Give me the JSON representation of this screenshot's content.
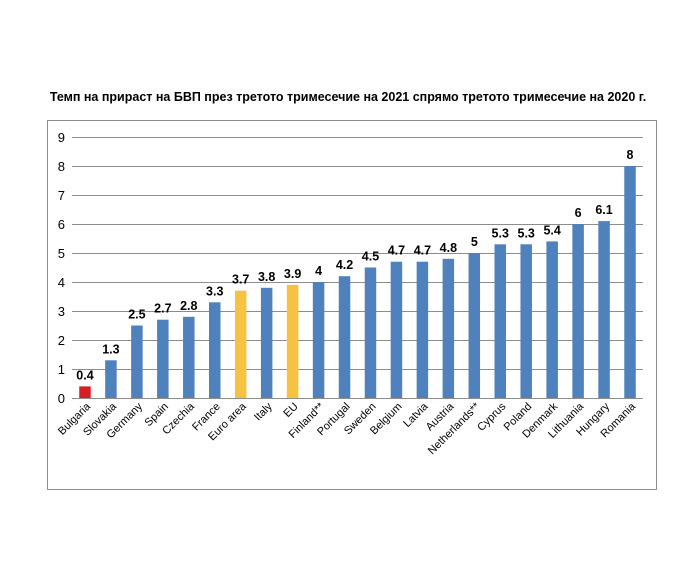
{
  "colors": {
    "default_bar": "#4f81bd",
    "highlight_bar": "#f5c242",
    "bulgaria_bar": "#d41f26",
    "gridline": "#8c8c8c"
  },
  "chart_data": {
    "type": "bar",
    "title": "Темп на прираст на БВП през третото тримесечие на 2021 спрямо третото тримесечие на 2020 г.",
    "xlabel": "",
    "ylabel": "",
    "ylim": [
      0,
      9
    ],
    "yticks": [
      0,
      1,
      2,
      3,
      4,
      5,
      6,
      7,
      8,
      9
    ],
    "grid": true,
    "legend": "none",
    "categories": [
      "Bulgaria",
      "Slovakia",
      "Germany",
      "Spain",
      "Czechia",
      "France",
      "Euro area",
      "Italy",
      "EU",
      "Finland**",
      "Portugal",
      "Sweden",
      "Belgium",
      "Latvia",
      "Austria",
      "Netherlands**",
      "Cyprus",
      "Poland",
      "Denmark",
      "Lithuania",
      "Hungary",
      "Romania"
    ],
    "values": [
      0.4,
      1.3,
      2.5,
      2.7,
      2.8,
      3.3,
      3.7,
      3.8,
      3.9,
      4,
      4.2,
      4.5,
      4.7,
      4.7,
      4.8,
      5,
      5.3,
      5.3,
      5.4,
      6,
      6.1,
      8
    ],
    "data_labels": [
      "0.4",
      "1.3",
      "2.5",
      "2.7",
      "2.8",
      "3.3",
      "3.7",
      "3.8",
      "3.9",
      "4",
      "4.2",
      "4.5",
      "4.7",
      "4.7",
      "4.8",
      "5",
      "5.3",
      "5.3",
      "5.4",
      "6",
      "6.1",
      "8"
    ],
    "bar_colors": [
      "bulgaria",
      "default",
      "default",
      "default",
      "default",
      "default",
      "highlight",
      "default",
      "highlight",
      "default",
      "default",
      "default",
      "default",
      "default",
      "default",
      "default",
      "default",
      "default",
      "default",
      "default",
      "default",
      "default"
    ]
  }
}
